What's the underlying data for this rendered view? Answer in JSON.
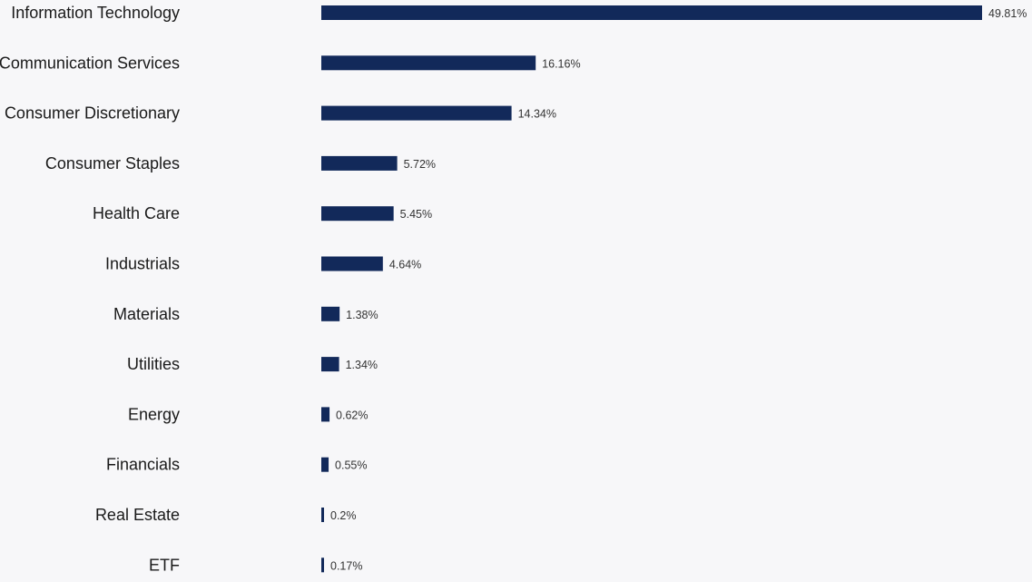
{
  "chart_data": {
    "type": "bar",
    "orientation": "horizontal",
    "categories": [
      "Information Technology",
      "Communication Services",
      "Consumer Discretionary",
      "Consumer Staples",
      "Health Care",
      "Industrials",
      "Materials",
      "Utilities",
      "Energy",
      "Financials",
      "Real Estate",
      "ETF"
    ],
    "values": [
      49.81,
      16.16,
      14.34,
      5.72,
      5.45,
      4.64,
      1.38,
      1.34,
      0.62,
      0.55,
      0.2,
      0.17
    ],
    "value_labels": [
      "49.81%",
      "16.16%",
      "14.34%",
      "5.72%",
      "5.45%",
      "4.64%",
      "1.38%",
      "1.34%",
      "0.62%",
      "0.55%",
      "0.2%",
      "0.17%"
    ],
    "unit": "%",
    "xlim": [
      0,
      49.81
    ],
    "grid": false,
    "legend": "none",
    "bar_color": "#12295a"
  }
}
